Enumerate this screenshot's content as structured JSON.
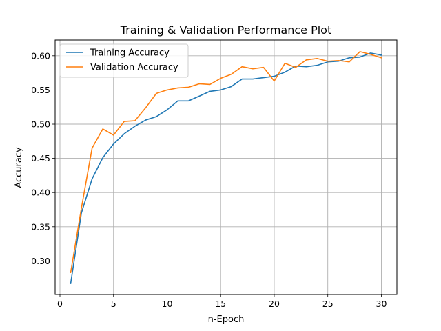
{
  "chart_data": {
    "type": "line",
    "title": "Training & Validation Performance Plot",
    "xlabel": "n-Epoch",
    "ylabel": "Accuracy",
    "xlim": [
      -0.45,
      31.45
    ],
    "ylim": [
      0.251,
      0.623
    ],
    "xticks": [
      0,
      5,
      10,
      15,
      20,
      25,
      30
    ],
    "xtick_labels": [
      "0",
      "5",
      "10",
      "15",
      "20",
      "25",
      "30"
    ],
    "yticks": [
      0.3,
      0.35,
      0.4,
      0.45,
      0.5,
      0.55,
      0.6
    ],
    "ytick_labels": [
      "0.30",
      "0.35",
      "0.40",
      "0.45",
      "0.50",
      "0.55",
      "0.60"
    ],
    "grid": true,
    "legend_position": "top-left",
    "x": [
      1,
      2,
      3,
      4,
      5,
      6,
      7,
      8,
      9,
      10,
      11,
      12,
      13,
      14,
      15,
      16,
      17,
      18,
      19,
      20,
      21,
      22,
      23,
      24,
      25,
      26,
      27,
      28,
      29,
      30
    ],
    "series": [
      {
        "name": "Training Accuracy",
        "color": "#1f77b4",
        "values": [
          0.267,
          0.37,
          0.42,
          0.451,
          0.471,
          0.486,
          0.497,
          0.506,
          0.511,
          0.521,
          0.534,
          0.534,
          0.541,
          0.548,
          0.55,
          0.555,
          0.566,
          0.566,
          0.568,
          0.57,
          0.576,
          0.585,
          0.584,
          0.586,
          0.591,
          0.592,
          0.597,
          0.598,
          0.604,
          0.601
        ]
      },
      {
        "name": "Validation Accuracy",
        "color": "#ff7f0e",
        "values": [
          0.283,
          0.377,
          0.465,
          0.493,
          0.484,
          0.504,
          0.505,
          0.524,
          0.545,
          0.55,
          0.553,
          0.554,
          0.559,
          0.558,
          0.567,
          0.573,
          0.584,
          0.581,
          0.583,
          0.563,
          0.589,
          0.583,
          0.594,
          0.596,
          0.592,
          0.593,
          0.591,
          0.606,
          0.602,
          0.597
        ]
      }
    ]
  }
}
